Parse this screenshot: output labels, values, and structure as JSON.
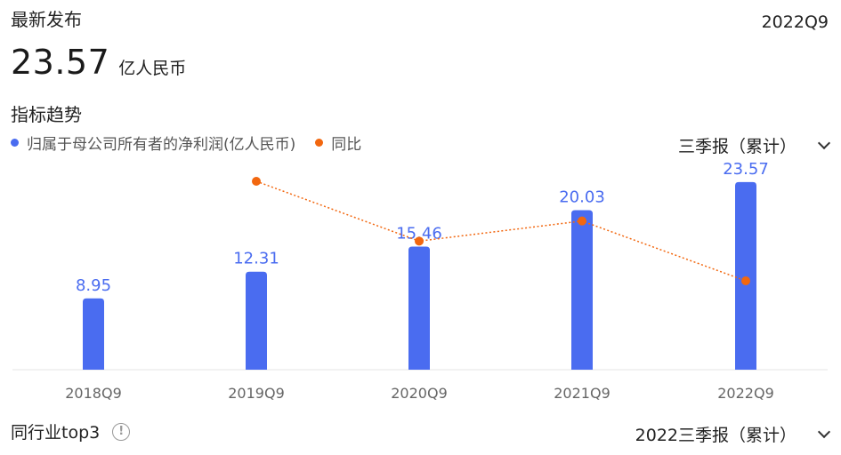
{
  "header": {
    "latest_label": "最新发布",
    "latest_period": "2022Q9",
    "latest_value": "23.57",
    "latest_unit": "亿人民币"
  },
  "trend": {
    "title": "指标趋势",
    "period_selector": "三季报（累计）"
  },
  "peer": {
    "title": "同行业top3",
    "period_selector": "2022三季报（累计）"
  },
  "colors": {
    "bar": "#4a6cf0",
    "line": "#f2670f",
    "axis": "#e6e6e6",
    "tick_text": "#666666"
  },
  "icons": {
    "info": "info-icon",
    "dropdown": "chevron-down-icon"
  },
  "chart_data": {
    "type": "bar",
    "categories": [
      "2018Q9",
      "2019Q9",
      "2020Q9",
      "2021Q9",
      "2022Q9"
    ],
    "series": [
      {
        "name": "归属于母公司所有者的净利润(亿人民币)",
        "type": "bar",
        "values": [
          8.95,
          12.31,
          15.46,
          20.03,
          23.57
        ],
        "labels": [
          "8.95",
          "12.31",
          "15.46",
          "20.03",
          "23.57"
        ]
      },
      {
        "name": "同比",
        "type": "line",
        "values": [
          null,
          37.5,
          25.6,
          29.6,
          17.7
        ]
      }
    ],
    "legend": "top-left",
    "grid": false
  }
}
